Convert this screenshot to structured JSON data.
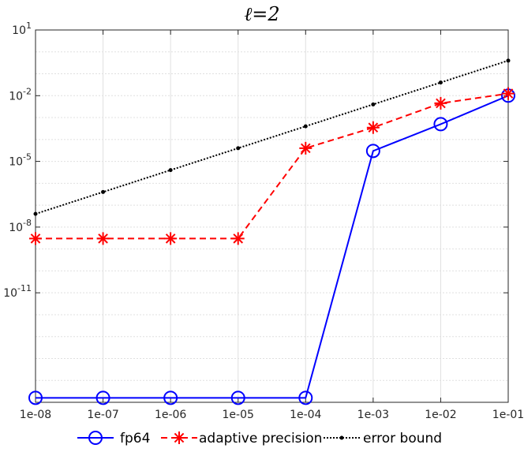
{
  "chart_data": {
    "type": "line",
    "title": "ℓ=2",
    "xscale": "log",
    "yscale": "log",
    "x": [
      1e-08,
      1e-07,
      1e-06,
      1e-05,
      0.0001,
      0.001,
      0.01,
      0.1
    ],
    "xticks": [
      "1e-08",
      "1e-07",
      "1e-06",
      "1e-05",
      "1e-04",
      "1e-03",
      "1e-02",
      "1e-01"
    ],
    "yticks": [
      {
        "base": "10",
        "exp": "1",
        "value": 10
      },
      {
        "base": "10",
        "exp": "-2",
        "value": 0.01
      },
      {
        "base": "10",
        "exp": "-5",
        "value": 1e-05
      },
      {
        "base": "10",
        "exp": "-8",
        "value": 1e-08
      },
      {
        "base": "10",
        "exp": "-11",
        "value": 1e-11
      }
    ],
    "ylim": [
      1e-16,
      10
    ],
    "grid": true,
    "legend_position": "bottom",
    "series": [
      {
        "name": "fp64",
        "color": "#0000ff",
        "linestyle": "solid",
        "marker": "circle",
        "values": [
          1.6e-16,
          1.6e-16,
          1.6e-16,
          1.6e-16,
          1.6e-16,
          3e-05,
          0.0005,
          0.01
        ]
      },
      {
        "name": "adaptive precision",
        "color": "#ff0000",
        "linestyle": "dashed",
        "marker": "asterisk",
        "values": [
          3e-09,
          3e-09,
          3e-09,
          3e-09,
          4e-05,
          0.00035,
          0.0045,
          0.0125
        ]
      },
      {
        "name": "error bound",
        "color": "#000000",
        "linestyle": "dotted",
        "marker": "dot",
        "values": [
          4e-08,
          4e-07,
          4e-06,
          4e-05,
          0.0004,
          0.004,
          0.04,
          0.4
        ]
      }
    ]
  }
}
